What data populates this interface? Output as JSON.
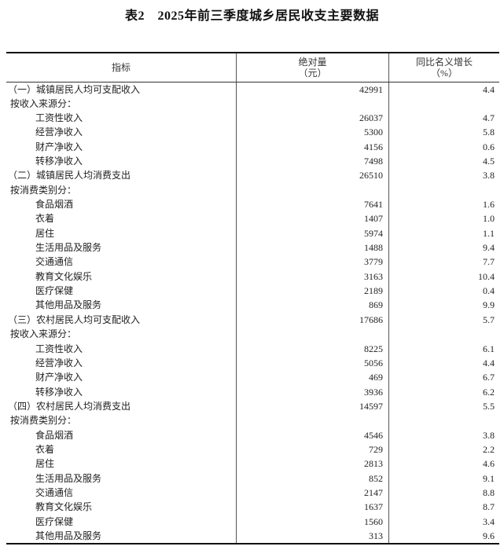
{
  "title": "表2　2025年前三季度城乡居民收支主要数据",
  "headers": {
    "indicator": "指标",
    "absolute_line1": "绝对量",
    "absolute_line2": "（元）",
    "growth_line1": "同比名义增长",
    "growth_line2": "（%）"
  },
  "rows": [
    {
      "label": "（一）城镇居民人均可支配收入",
      "level": 0,
      "value": "42991",
      "growth": "4.4"
    },
    {
      "label": "按收入来源分：",
      "level": 1,
      "value": "",
      "growth": ""
    },
    {
      "label": "工资性收入",
      "level": 2,
      "value": "26037",
      "growth": "4.7"
    },
    {
      "label": "经营净收入",
      "level": 2,
      "value": "5300",
      "growth": "5.8"
    },
    {
      "label": "财产净收入",
      "level": 2,
      "value": "4156",
      "growth": "0.6"
    },
    {
      "label": "转移净收入",
      "level": 2,
      "value": "7498",
      "growth": "4.5"
    },
    {
      "label": "（二）城镇居民人均消费支出",
      "level": 0,
      "value": "26510",
      "growth": "3.8"
    },
    {
      "label": "按消费类别分：",
      "level": 1,
      "value": "",
      "growth": ""
    },
    {
      "label": "食品烟酒",
      "level": 2,
      "value": "7641",
      "growth": "1.6"
    },
    {
      "label": "衣着",
      "level": 2,
      "value": "1407",
      "growth": "1.0"
    },
    {
      "label": "居住",
      "level": 2,
      "value": "5974",
      "growth": "1.1"
    },
    {
      "label": "生活用品及服务",
      "level": 2,
      "value": "1488",
      "growth": "9.4"
    },
    {
      "label": "交通通信",
      "level": 2,
      "value": "3779",
      "growth": "7.7"
    },
    {
      "label": "教育文化娱乐",
      "level": 2,
      "value": "3163",
      "growth": "10.4"
    },
    {
      "label": "医疗保健",
      "level": 2,
      "value": "2189",
      "growth": "0.4"
    },
    {
      "label": "其他用品及服务",
      "level": 2,
      "value": "869",
      "growth": "9.9"
    },
    {
      "label": "（三）农村居民人均可支配收入",
      "level": 0,
      "value": "17686",
      "growth": "5.7"
    },
    {
      "label": "按收入来源分：",
      "level": 1,
      "value": "",
      "growth": ""
    },
    {
      "label": "工资性收入",
      "level": 2,
      "value": "8225",
      "growth": "6.1"
    },
    {
      "label": "经营净收入",
      "level": 2,
      "value": "5056",
      "growth": "4.4"
    },
    {
      "label": "财产净收入",
      "level": 2,
      "value": "469",
      "growth": "6.7"
    },
    {
      "label": "转移净收入",
      "level": 2,
      "value": "3936",
      "growth": "6.2"
    },
    {
      "label": "（四）农村居民人均消费支出",
      "level": 0,
      "value": "14597",
      "growth": "5.5"
    },
    {
      "label": "按消费类别分：",
      "level": 1,
      "value": "",
      "growth": ""
    },
    {
      "label": "食品烟酒",
      "level": 2,
      "value": "4546",
      "growth": "3.8"
    },
    {
      "label": "衣着",
      "level": 2,
      "value": "729",
      "growth": "2.2"
    },
    {
      "label": "居住",
      "level": 2,
      "value": "2813",
      "growth": "4.6"
    },
    {
      "label": "生活用品及服务",
      "level": 2,
      "value": "852",
      "growth": "9.1"
    },
    {
      "label": "交通通信",
      "level": 2,
      "value": "2147",
      "growth": "8.8"
    },
    {
      "label": "教育文化娱乐",
      "level": 2,
      "value": "1637",
      "growth": "8.7"
    },
    {
      "label": "医疗保健",
      "level": 2,
      "value": "1560",
      "growth": "3.4"
    },
    {
      "label": "其他用品及服务",
      "level": 2,
      "value": "313",
      "growth": "9.6"
    }
  ]
}
